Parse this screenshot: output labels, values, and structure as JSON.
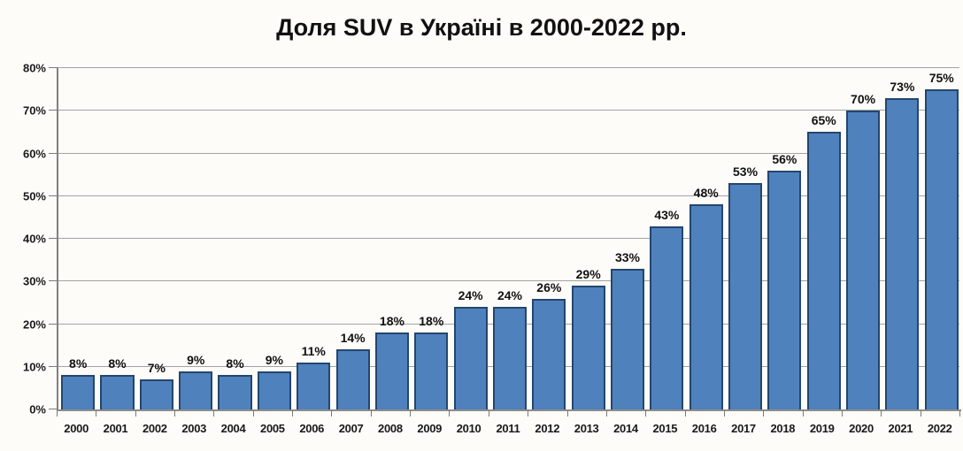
{
  "chart_data": {
    "type": "bar",
    "title": "Доля SUV в Україні в 2000-2022 рр.",
    "categories": [
      "2000",
      "2001",
      "2002",
      "2003",
      "2004",
      "2005",
      "2006",
      "2007",
      "2008",
      "2009",
      "2010",
      "2011",
      "2012",
      "2013",
      "2014",
      "2015",
      "2016",
      "2017",
      "2018",
      "2019",
      "2020",
      "2021",
      "2022"
    ],
    "values": [
      8,
      8,
      7,
      9,
      8,
      9,
      11,
      14,
      18,
      18,
      24,
      24,
      26,
      29,
      33,
      43,
      48,
      53,
      56,
      65,
      70,
      73,
      75
    ],
    "value_label_suffix": "%",
    "xlabel": "",
    "ylabel": "",
    "ylim": [
      0,
      80
    ],
    "ytick_step": 10,
    "yticks": [
      "0%",
      "10%",
      "20%",
      "30%",
      "40%",
      "50%",
      "60%",
      "70%",
      "80%"
    ],
    "grid": true,
    "legend": false,
    "colors": {
      "bar_fill": "#4f81bd",
      "bar_border": "#24466e",
      "gridline": "#a3a3a3",
      "axis": "#808080",
      "text": "#1a1a1a",
      "background": "#fdfcf8"
    }
  }
}
